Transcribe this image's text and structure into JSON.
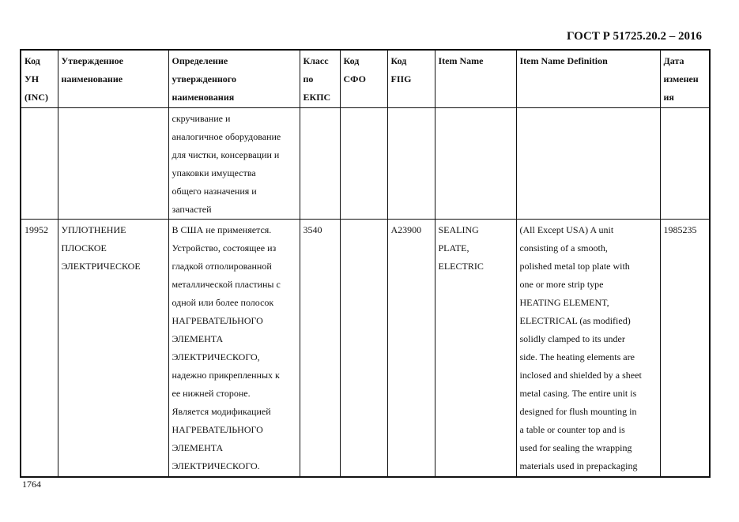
{
  "header": {
    "standard": "ГОСТ Р 51725.20.2 – 2016"
  },
  "table": {
    "columns": [
      "Код\nУН\n(INC)",
      "Утвержденное\nнаименование",
      "Определение\nутвержденного\nнаименования",
      "Класс\nпо\nЕКПС",
      "Код\nСФО",
      "Код\nFIIG",
      "Item Name",
      "Item Name Definition",
      "Дата\nизменен\nия"
    ],
    "rows": [
      [
        "",
        "",
        "скручивание и\nаналогичное оборудование\nдля чистки, консервации и\nупаковки имущества\nобщего назначения и\nзапчастей",
        "",
        "",
        "",
        "",
        "",
        ""
      ],
      [
        "19952",
        "УПЛОТНЕНИЕ\nПЛОСКОЕ\nЭЛЕКТРИЧЕСКОЕ",
        "В США не применяется.\nУстройство, состоящее из\nгладкой отполированной\nметаллической пластины с\nодной или более полосок\nНАГРЕВАТЕЛЬНОГО\nЭЛЕМЕНТА\nЭЛЕКТРИЧЕСКОГО,\nнадежно прикрепленных к\nее нижней стороне.\nЯвляется модификацией\nНАГРЕВАТЕЛЬНОГО\nЭЛЕМЕНТА\nЭЛЕКТРИЧЕСКОГО.",
        "3540",
        "",
        "A23900",
        "SEALING\nPLATE,\nELECTRIC",
        "(All Except USA) A unit\nconsisting of a smooth,\npolished metal top plate with\none or more strip type\nHEATING ELEMENT,\nELECTRICAL (as modified)\nsolidly clamped to its under\nside. The heating elements are\ninclosed and shielded by a sheet\nmetal casing. The entire unit is\ndesigned for flush mounting in\na table or counter top and is\nused for sealing the wrapping\nmaterials used in prepackaging",
        "1985235"
      ]
    ]
  },
  "footer": {
    "page_number": "1764"
  }
}
